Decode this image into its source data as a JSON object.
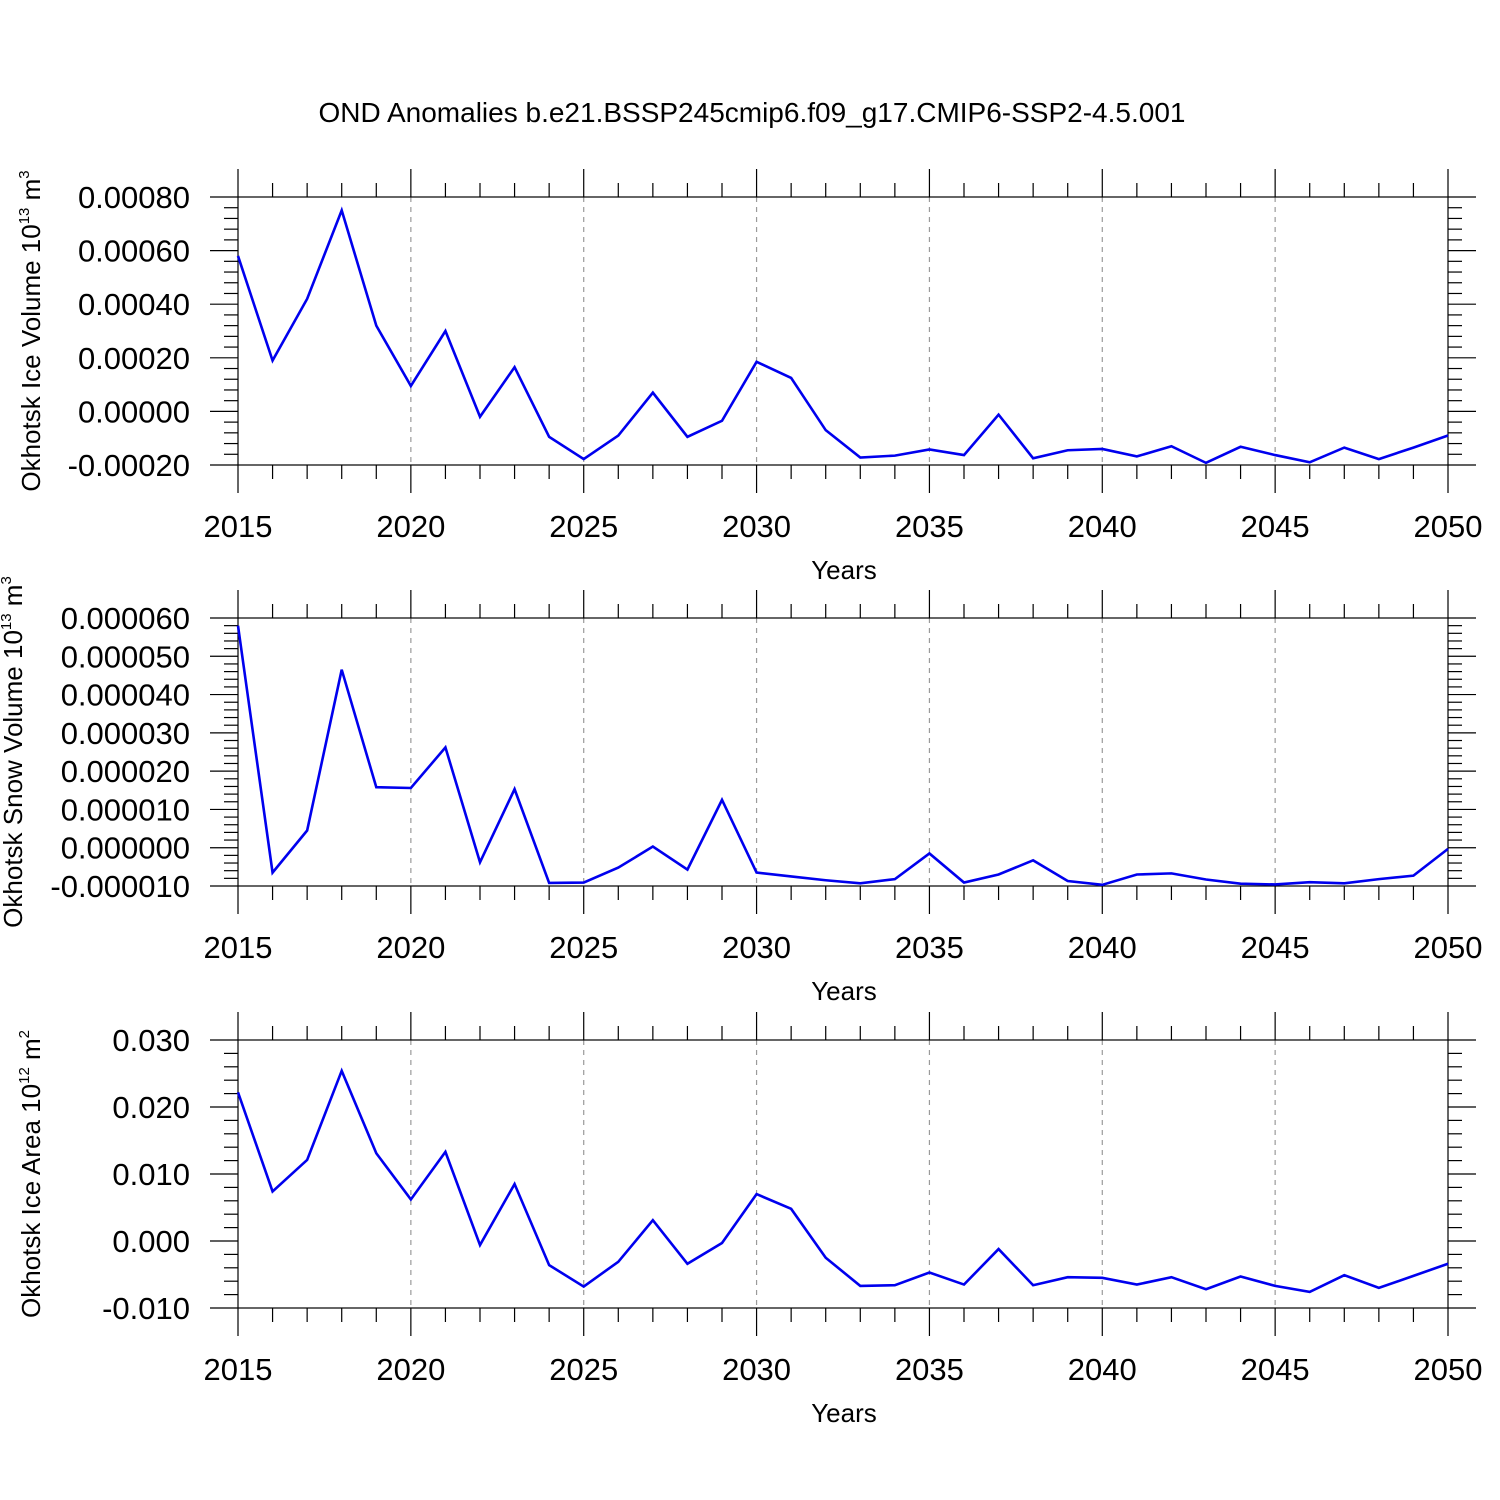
{
  "title": "OND Anomalies b.e21.BSSP245cmip6.f09_g17.CMIP6-SSP2-4.5.001",
  "line_color": "#0000ee",
  "chart_data": [
    {
      "type": "line",
      "xlabel": "Years",
      "ylabel": {
        "main": "Okhotsk Ice Volume 10",
        "exponent": "13",
        "unit": " m",
        "unit_exponent": "3"
      },
      "xlim": [
        2015,
        2050
      ],
      "ylim": [
        -0.0002,
        0.0008
      ],
      "x_ticks": [
        "2015",
        "2020",
        "2025",
        "2030",
        "2035",
        "2040",
        "2045",
        "2050"
      ],
      "y_ticks": [
        "-0.00020",
        "0.00000",
        "0.00020",
        "0.00040",
        "0.00060",
        "0.00080"
      ],
      "grid": "dashed vertical at major x ticks",
      "x": [
        2015,
        2016,
        2017,
        2018,
        2019,
        2020,
        2021,
        2022,
        2023,
        2024,
        2025,
        2026,
        2027,
        2028,
        2029,
        2030,
        2031,
        2032,
        2033,
        2034,
        2035,
        2036,
        2037,
        2038,
        2039,
        2040,
        2041,
        2042,
        2043,
        2044,
        2045,
        2046,
        2047,
        2048,
        2049,
        2050
      ],
      "values": [
        0.00058,
        0.00019,
        0.00042,
        0.00075,
        0.00032,
        9.5e-05,
        0.0003,
        -2e-05,
        0.000165,
        -9.5e-05,
        -0.000178,
        -9e-05,
        7e-05,
        -9.5e-05,
        -3.5e-05,
        0.000185,
        0.000125,
        -7e-05,
        -0.000172,
        -0.000165,
        -0.000142,
        -0.000163,
        -1.2e-05,
        -0.000175,
        -0.000145,
        -0.00014,
        -0.000168,
        -0.00013,
        -0.000192,
        -0.000132,
        -0.000163,
        -0.00019,
        -0.000135,
        -0.000178,
        -0.000135,
        -9e-05
      ]
    },
    {
      "type": "line",
      "xlabel": "Years",
      "ylabel": {
        "main": "Okhotsk Snow Volume 10",
        "exponent": "13",
        "unit": " m",
        "unit_exponent": "3"
      },
      "xlim": [
        2015,
        2050
      ],
      "ylim": [
        -1e-05,
        6e-05
      ],
      "x_ticks": [
        "2015",
        "2020",
        "2025",
        "2030",
        "2035",
        "2040",
        "2045",
        "2050"
      ],
      "y_ticks": [
        "-0.000010",
        "0.000000",
        "0.000010",
        "0.000020",
        "0.000030",
        "0.000040",
        "0.000050",
        "0.000060"
      ],
      "grid": "dashed vertical at major x ticks",
      "x": [
        2015,
        2016,
        2017,
        2018,
        2019,
        2020,
        2021,
        2022,
        2023,
        2024,
        2025,
        2026,
        2027,
        2028,
        2029,
        2030,
        2031,
        2032,
        2033,
        2034,
        2035,
        2036,
        2037,
        2038,
        2039,
        2040,
        2041,
        2042,
        2043,
        2044,
        2045,
        2046,
        2047,
        2048,
        2049,
        2050
      ],
      "values": [
        5.8e-05,
        -6.5e-06,
        4.5e-06,
        4.65e-05,
        1.58e-05,
        1.56e-05,
        2.62e-05,
        -3.8e-06,
        1.53e-05,
        -9.2e-06,
        -9.1e-06,
        -5.2e-06,
        3e-07,
        -5.7e-06,
        1.25e-05,
        -6.5e-06,
        -7.5e-06,
        -8.5e-06,
        -9.3e-06,
        -8.2e-06,
        -1.5e-06,
        -9.1e-06,
        -7e-06,
        -3.3e-06,
        -8.7e-06,
        -9.7e-06,
        -7e-06,
        -6.7e-06,
        -8.3e-06,
        -9.4e-06,
        -9.6e-06,
        -9e-06,
        -9.3e-06,
        -8.2e-06,
        -7.3e-06,
        -3e-07
      ]
    },
    {
      "type": "line",
      "xlabel": "Years",
      "ylabel": {
        "main": "Okhotsk Ice Area 10",
        "exponent": "12",
        "unit": " m",
        "unit_exponent": "2"
      },
      "xlim": [
        2015,
        2050
      ],
      "ylim": [
        -0.01,
        0.03
      ],
      "x_ticks": [
        "2015",
        "2020",
        "2025",
        "2030",
        "2035",
        "2040",
        "2045",
        "2050"
      ],
      "y_ticks": [
        "-0.010",
        "0.000",
        "0.010",
        "0.020",
        "0.030"
      ],
      "grid": "dashed vertical at major x ticks",
      "x": [
        2015,
        2016,
        2017,
        2018,
        2019,
        2020,
        2021,
        2022,
        2023,
        2024,
        2025,
        2026,
        2027,
        2028,
        2029,
        2030,
        2031,
        2032,
        2033,
        2034,
        2035,
        2036,
        2037,
        2038,
        2039,
        2040,
        2041,
        2042,
        2043,
        2044,
        2045,
        2046,
        2047,
        2048,
        2049,
        2050
      ],
      "values": [
        0.0222,
        0.0074,
        0.0121,
        0.0254,
        0.0131,
        0.0062,
        0.0133,
        -0.0006,
        0.0085,
        -0.0036,
        -0.0068,
        -0.0031,
        0.0031,
        -0.0034,
        -0.0003,
        0.007,
        0.0048,
        -0.0025,
        -0.0067,
        -0.0066,
        -0.0047,
        -0.0065,
        -0.0012,
        -0.0066,
        -0.0054,
        -0.0055,
        -0.0065,
        -0.0054,
        -0.0072,
        -0.0053,
        -0.0067,
        -0.0076,
        -0.0051,
        -0.007,
        -0.0052,
        -0.0034
      ]
    }
  ]
}
